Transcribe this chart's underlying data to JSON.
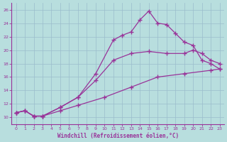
{
  "background_color": "#b8dede",
  "grid_color": "#9bbccc",
  "line_color": "#993399",
  "xlabel": "Windchill (Refroidissement éolien,°C)",
  "xlim_min": -0.5,
  "xlim_max": 23.5,
  "ylim_min": 9.0,
  "ylim_max": 27.0,
  "yticks": [
    10,
    12,
    14,
    16,
    18,
    20,
    22,
    24,
    26
  ],
  "xticks": [
    0,
    1,
    2,
    3,
    4,
    5,
    6,
    7,
    8,
    9,
    10,
    11,
    12,
    13,
    14,
    15,
    16,
    17,
    18,
    19,
    20,
    21,
    22,
    23
  ],
  "line1_x": [
    0,
    1,
    2,
    3,
    5,
    7,
    10,
    13,
    16,
    19,
    22,
    23
  ],
  "line1_y": [
    10.7,
    11.0,
    10.2,
    10.2,
    11.0,
    11.8,
    13.0,
    14.5,
    16.0,
    16.5,
    17.0,
    17.2
  ],
  "line2_x": [
    0,
    1,
    2,
    3,
    5,
    7,
    9,
    11,
    13,
    15,
    17,
    19,
    20,
    21,
    22,
    23
  ],
  "line2_y": [
    10.7,
    11.0,
    10.2,
    10.2,
    11.5,
    13.0,
    15.5,
    18.5,
    19.5,
    19.8,
    19.5,
    19.5,
    20.0,
    19.5,
    18.5,
    18.0
  ],
  "line3_x": [
    0,
    1,
    2,
    3,
    5,
    7,
    9,
    11,
    12,
    13,
    14,
    15,
    16,
    17,
    18,
    19,
    20,
    21,
    22,
    23
  ],
  "line3_y": [
    10.7,
    11.0,
    10.2,
    10.2,
    11.5,
    13.0,
    16.5,
    21.5,
    22.2,
    22.7,
    24.5,
    25.8,
    24.0,
    23.8,
    22.5,
    21.2,
    20.7,
    18.5,
    18.0,
    17.2
  ]
}
